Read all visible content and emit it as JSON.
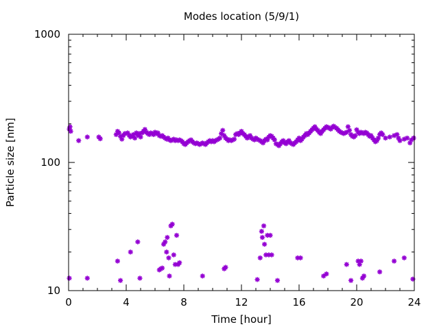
{
  "chart_data": {
    "type": "scatter",
    "title": "Modes location (5/9/1)",
    "xlabel": "Time [hour]",
    "ylabel": "Particle size [nm]",
    "xlim": [
      0,
      24
    ],
    "ylim": [
      10,
      1000
    ],
    "yscale": "log",
    "grid": false,
    "legend": "none",
    "x_ticks": [
      0,
      4,
      8,
      12,
      16,
      20,
      24
    ],
    "x_tick_labels": [
      "0",
      "4",
      "8",
      "12",
      "16",
      "20",
      "24"
    ],
    "y_ticks": [
      10,
      100,
      1000
    ],
    "y_tick_labels": [
      "10",
      "100",
      "1000"
    ],
    "marker_color": "#9400d3",
    "series": [
      {
        "points": [
          [
            0.05,
            182
          ],
          [
            0.1,
            190
          ],
          [
            0.15,
            175
          ],
          [
            0.7,
            148
          ],
          [
            1.3,
            158
          ],
          [
            2.1,
            158
          ],
          [
            2.2,
            153
          ],
          [
            3.3,
            165
          ],
          [
            3.4,
            175
          ],
          [
            3.5,
            170
          ],
          [
            3.6,
            160
          ],
          [
            3.7,
            152
          ],
          [
            3.8,
            162
          ],
          [
            3.9,
            168
          ],
          [
            4.1,
            170
          ],
          [
            4.2,
            163
          ],
          [
            4.3,
            158
          ],
          [
            4.4,
            160
          ],
          [
            4.5,
            165
          ],
          [
            4.6,
            155
          ],
          [
            4.7,
            170
          ],
          [
            4.8,
            163
          ],
          [
            4.9,
            168
          ],
          [
            5.0,
            158
          ],
          [
            5.1,
            170
          ],
          [
            5.2,
            175
          ],
          [
            5.3,
            181
          ],
          [
            5.4,
            172
          ],
          [
            5.5,
            168
          ],
          [
            5.6,
            165
          ],
          [
            5.7,
            170
          ],
          [
            5.8,
            168
          ],
          [
            5.9,
            165
          ],
          [
            6.0,
            172
          ],
          [
            6.1,
            168
          ],
          [
            6.2,
            170
          ],
          [
            6.3,
            162
          ],
          [
            6.4,
            160
          ],
          [
            6.5,
            162
          ],
          [
            6.6,
            158
          ],
          [
            6.7,
            155
          ],
          [
            6.8,
            152
          ],
          [
            6.9,
            155
          ],
          [
            7.0,
            150
          ],
          [
            7.1,
            148
          ],
          [
            7.2,
            150
          ],
          [
            7.3,
            152
          ],
          [
            7.4,
            148
          ],
          [
            7.5,
            150
          ],
          [
            7.6,
            148
          ],
          [
            7.7,
            150
          ],
          [
            7.8,
            148
          ],
          [
            7.9,
            145
          ],
          [
            8.0,
            140
          ],
          [
            8.1,
            138
          ],
          [
            8.2,
            142
          ],
          [
            8.3,
            145
          ],
          [
            8.4,
            148
          ],
          [
            8.5,
            150
          ],
          [
            8.6,
            145
          ],
          [
            8.7,
            142
          ],
          [
            8.8,
            140
          ],
          [
            8.9,
            142
          ],
          [
            9.0,
            140
          ],
          [
            9.1,
            138
          ],
          [
            9.2,
            140
          ],
          [
            9.3,
            142
          ],
          [
            9.4,
            140
          ],
          [
            9.5,
            138
          ],
          [
            9.6,
            142
          ],
          [
            9.7,
            145
          ],
          [
            9.8,
            148
          ],
          [
            9.9,
            145
          ],
          [
            10.0,
            148
          ],
          [
            10.1,
            145
          ],
          [
            10.2,
            148
          ],
          [
            10.3,
            150
          ],
          [
            10.4,
            152
          ],
          [
            10.5,
            155
          ],
          [
            10.6,
            168
          ],
          [
            10.7,
            178
          ],
          [
            10.8,
            162
          ],
          [
            10.9,
            155
          ],
          [
            11.0,
            152
          ],
          [
            11.1,
            148
          ],
          [
            11.2,
            150
          ],
          [
            11.3,
            148
          ],
          [
            11.4,
            150
          ],
          [
            11.5,
            152
          ],
          [
            11.6,
            165
          ],
          [
            11.7,
            168
          ],
          [
            11.8,
            165
          ],
          [
            11.9,
            170
          ],
          [
            12.0,
            175
          ],
          [
            12.1,
            168
          ],
          [
            12.2,
            165
          ],
          [
            12.3,
            160
          ],
          [
            12.4,
            155
          ],
          [
            12.5,
            158
          ],
          [
            12.6,
            162
          ],
          [
            12.7,
            155
          ],
          [
            12.8,
            152
          ],
          [
            12.9,
            150
          ],
          [
            13.0,
            155
          ],
          [
            13.1,
            152
          ],
          [
            13.2,
            150
          ],
          [
            13.3,
            148
          ],
          [
            13.4,
            145
          ],
          [
            13.5,
            142
          ],
          [
            13.6,
            148
          ],
          [
            13.7,
            152
          ],
          [
            13.8,
            150
          ],
          [
            13.9,
            158
          ],
          [
            14.0,
            162
          ],
          [
            14.1,
            160
          ],
          [
            14.2,
            155
          ],
          [
            14.3,
            150
          ],
          [
            14.4,
            140
          ],
          [
            14.5,
            138
          ],
          [
            14.6,
            135
          ],
          [
            14.7,
            140
          ],
          [
            14.8,
            145
          ],
          [
            14.9,
            148
          ],
          [
            15.0,
            142
          ],
          [
            15.1,
            140
          ],
          [
            15.2,
            145
          ],
          [
            15.3,
            148
          ],
          [
            15.4,
            142
          ],
          [
            15.5,
            140
          ],
          [
            15.6,
            138
          ],
          [
            15.7,
            142
          ],
          [
            15.8,
            145
          ],
          [
            15.9,
            150
          ],
          [
            16.0,
            155
          ],
          [
            16.1,
            148
          ],
          [
            16.2,
            152
          ],
          [
            16.3,
            158
          ],
          [
            16.4,
            162
          ],
          [
            16.5,
            168
          ],
          [
            16.6,
            165
          ],
          [
            16.7,
            170
          ],
          [
            16.8,
            175
          ],
          [
            16.9,
            180
          ],
          [
            17.0,
            185
          ],
          [
            17.1,
            190
          ],
          [
            17.2,
            182
          ],
          [
            17.3,
            178
          ],
          [
            17.4,
            172
          ],
          [
            17.5,
            168
          ],
          [
            17.6,
            175
          ],
          [
            17.7,
            180
          ],
          [
            17.8,
            185
          ],
          [
            17.9,
            190
          ],
          [
            18.0,
            188
          ],
          [
            18.1,
            185
          ],
          [
            18.2,
            182
          ],
          [
            18.3,
            188
          ],
          [
            18.4,
            192
          ],
          [
            18.5,
            188
          ],
          [
            18.6,
            185
          ],
          [
            18.7,
            180
          ],
          [
            18.8,
            175
          ],
          [
            18.9,
            172
          ],
          [
            19.0,
            170
          ],
          [
            19.1,
            168
          ],
          [
            19.2,
            170
          ],
          [
            19.3,
            172
          ],
          [
            19.4,
            190
          ],
          [
            19.5,
            178
          ],
          [
            19.6,
            165
          ],
          [
            19.7,
            160
          ],
          [
            19.8,
            158
          ],
          [
            19.9,
            162
          ],
          [
            20.0,
            180
          ],
          [
            20.1,
            172
          ],
          [
            20.2,
            168
          ],
          [
            20.3,
            172
          ],
          [
            20.4,
            170
          ],
          [
            20.5,
            168
          ],
          [
            20.6,
            172
          ],
          [
            20.7,
            170
          ],
          [
            20.8,
            165
          ],
          [
            20.9,
            160
          ],
          [
            21.0,
            162
          ],
          [
            21.1,
            155
          ],
          [
            21.2,
            150
          ],
          [
            21.3,
            145
          ],
          [
            21.4,
            148
          ],
          [
            21.5,
            155
          ],
          [
            21.6,
            165
          ],
          [
            21.7,
            170
          ],
          [
            21.8,
            165
          ],
          [
            22.0,
            155
          ],
          [
            22.3,
            158
          ],
          [
            22.6,
            162
          ],
          [
            22.8,
            165
          ],
          [
            22.9,
            155
          ],
          [
            23.0,
            148
          ],
          [
            23.3,
            152
          ],
          [
            23.5,
            155
          ],
          [
            23.7,
            142
          ],
          [
            23.8,
            150
          ],
          [
            23.95,
            155
          ],
          [
            0.05,
            12.5
          ],
          [
            1.3,
            12.5
          ],
          [
            3.4,
            17
          ],
          [
            3.6,
            12
          ],
          [
            4.3,
            20
          ],
          [
            4.8,
            24
          ],
          [
            4.95,
            12.5
          ],
          [
            6.3,
            14.5
          ],
          [
            6.4,
            14.8
          ],
          [
            6.5,
            15
          ],
          [
            6.6,
            23
          ],
          [
            6.7,
            24
          ],
          [
            6.8,
            20
          ],
          [
            6.85,
            26
          ],
          [
            6.95,
            18
          ],
          [
            7.0,
            13
          ],
          [
            7.1,
            32
          ],
          [
            7.2,
            33
          ],
          [
            7.3,
            19
          ],
          [
            7.4,
            16
          ],
          [
            7.5,
            27
          ],
          [
            7.6,
            16
          ],
          [
            7.7,
            16.5
          ],
          [
            9.3,
            13
          ],
          [
            10.8,
            14.8
          ],
          [
            10.9,
            15.2
          ],
          [
            13.1,
            12.2
          ],
          [
            13.3,
            18
          ],
          [
            13.4,
            29
          ],
          [
            13.45,
            26
          ],
          [
            13.55,
            32
          ],
          [
            13.6,
            23
          ],
          [
            13.7,
            19
          ],
          [
            13.8,
            27
          ],
          [
            13.9,
            19
          ],
          [
            14.0,
            27
          ],
          [
            14.1,
            19
          ],
          [
            14.5,
            12
          ],
          [
            15.9,
            18
          ],
          [
            16.1,
            18
          ],
          [
            17.7,
            13
          ],
          [
            17.9,
            13.5
          ],
          [
            19.3,
            16
          ],
          [
            19.6,
            12
          ],
          [
            20.1,
            17
          ],
          [
            20.2,
            16
          ],
          [
            20.3,
            17
          ],
          [
            20.4,
            12.5
          ],
          [
            20.5,
            13
          ],
          [
            21.6,
            14
          ],
          [
            22.6,
            17
          ],
          [
            23.3,
            18
          ],
          [
            23.9,
            12.3
          ]
        ]
      }
    ]
  }
}
